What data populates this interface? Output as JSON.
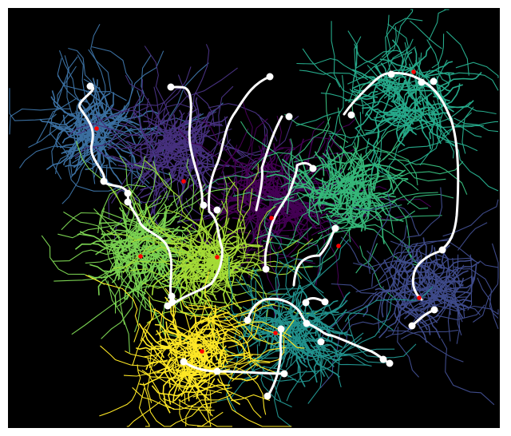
{
  "map": {
    "background": "#000000",
    "route_color": "#ffffff",
    "center_marker_color": "#ff0000",
    "regions": [
      {
        "id": "northwest",
        "color": "#3b6fa0"
      },
      {
        "id": "north-central",
        "color": "#46307e"
      },
      {
        "id": "central",
        "color": "#440154"
      },
      {
        "id": "east",
        "color": "#35b779"
      },
      {
        "id": "northeast",
        "color": "#26a98a"
      },
      {
        "id": "southeast",
        "color": "#3e4a89"
      },
      {
        "id": "west",
        "color": "#7ad151"
      },
      {
        "id": "west-central",
        "color": "#a5db36"
      },
      {
        "id": "south-central",
        "color": "#21918c"
      },
      {
        "id": "south",
        "color": "#fde725"
      }
    ]
  }
}
